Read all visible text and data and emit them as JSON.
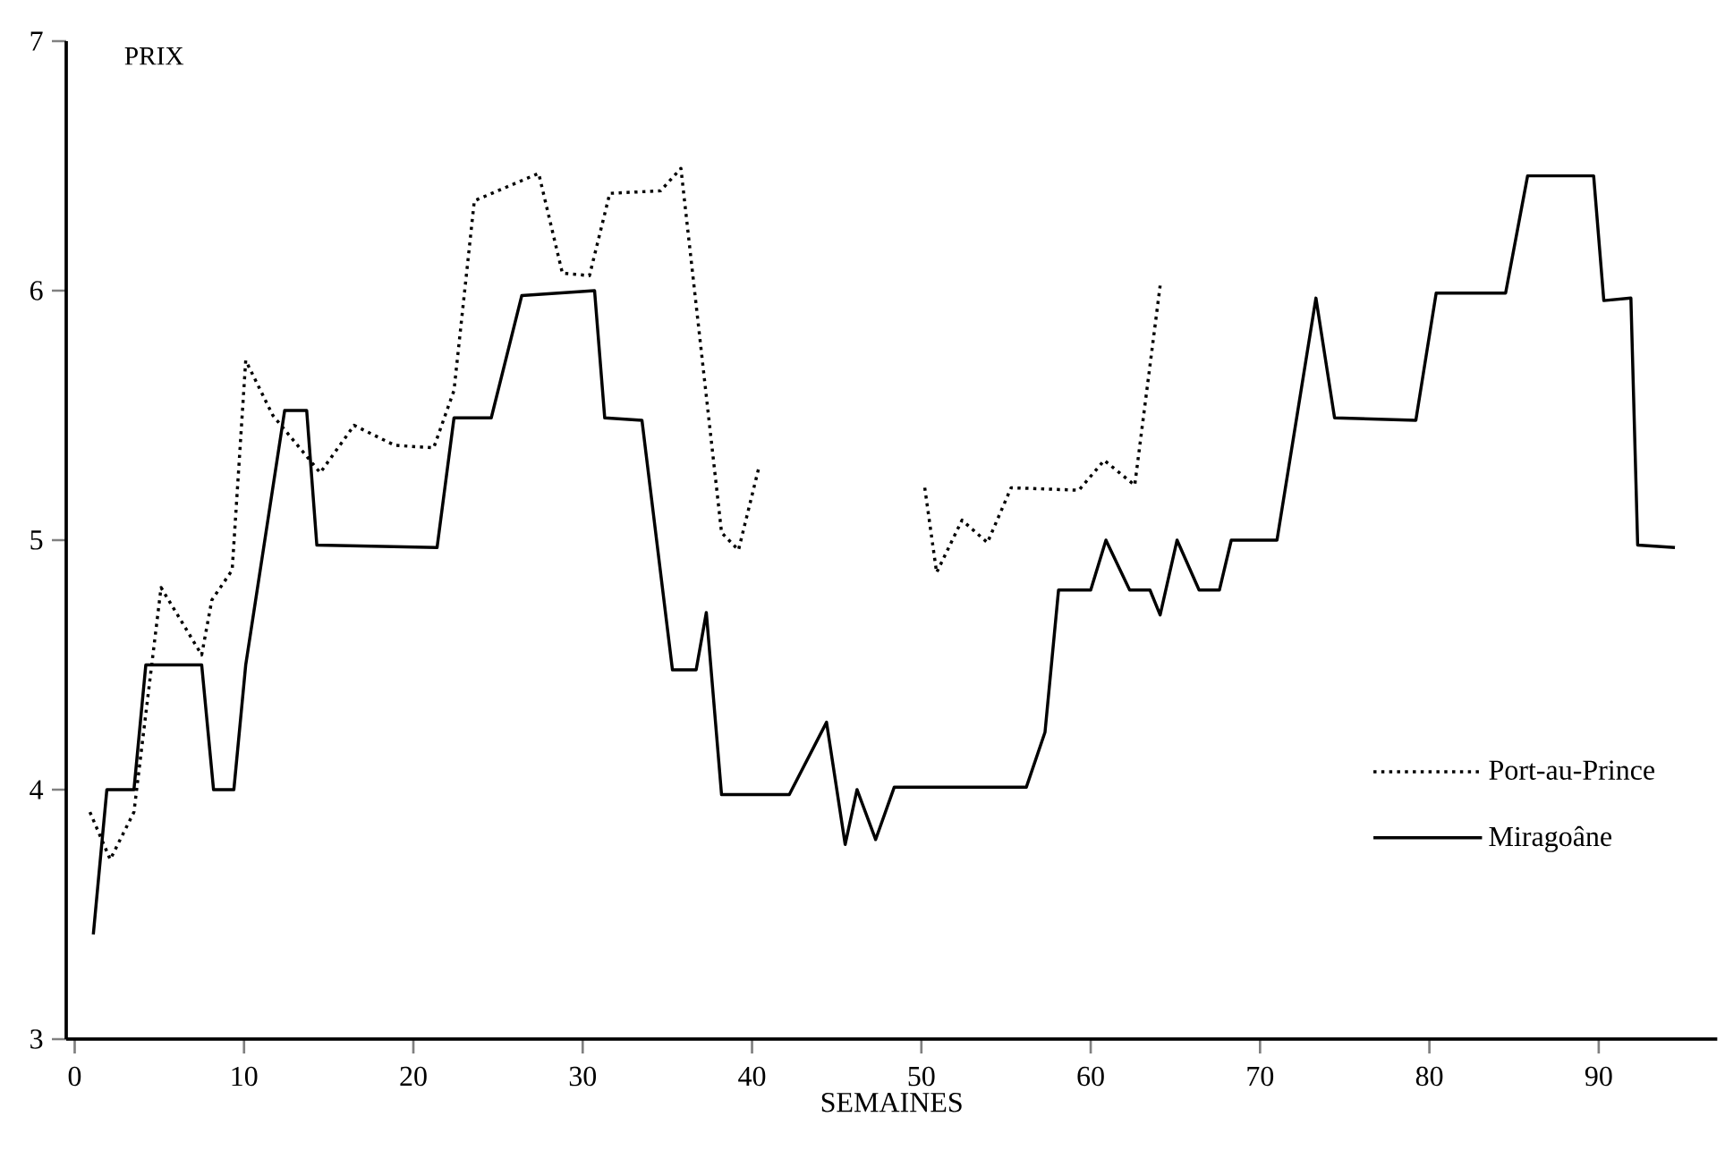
{
  "chart_data": {
    "type": "line",
    "xlabel": "SEMAINES",
    "ylabel": "PRIX",
    "xlim": [
      -0.5,
      97
    ],
    "ylim": [
      3,
      7
    ],
    "xticks": [
      0,
      10,
      20,
      30,
      40,
      50,
      60,
      70,
      80,
      90
    ],
    "yticks": [
      3,
      4,
      5,
      6,
      7
    ],
    "grid": false,
    "legend": "bottom right",
    "marker": "none",
    "series": [
      {
        "name": "Port-au-Prince",
        "color": "#000000",
        "line_style": "dotted",
        "x": [
          0.9,
          2.1,
          3.5,
          5.1,
          7.5,
          8.1,
          9.3,
          10.1,
          11.7,
          14.5,
          16.5,
          18.9,
          21.2,
          22.4,
          23.6,
          27.4,
          28.8,
          30.4,
          31.6,
          34.6,
          35.8,
          38.2,
          39.2,
          40.4,
          45,
          50.2,
          50.9,
          52.4,
          53.9,
          55.3,
          59.3,
          60.8,
          62.6,
          64.1
        ],
        "values": [
          3.91,
          3.72,
          3.91,
          4.81,
          4.54,
          4.76,
          4.88,
          5.72,
          5.5,
          5.27,
          5.46,
          5.38,
          5.37,
          5.6,
          6.36,
          6.47,
          6.07,
          6.06,
          6.39,
          6.4,
          6.49,
          5.03,
          4.96,
          5.29,
          null,
          5.21,
          4.87,
          5.08,
          4.99,
          5.21,
          5.2,
          5.32,
          5.22,
          6.02
        ]
      },
      {
        "name": "Miragoâne",
        "color": "#000000",
        "line_style": "solid",
        "x": [
          1.1,
          1.9,
          3.5,
          4.2,
          7.5,
          8.2,
          9.4,
          10.1,
          12.4,
          13.7,
          14.3,
          21.4,
          22.4,
          24.6,
          26.4,
          30.7,
          31.3,
          33.5,
          35.3,
          36.7,
          37.3,
          38.2,
          42.2,
          44.4,
          45.5,
          46.2,
          47.3,
          48.4,
          56.2,
          57.3,
          58.1,
          60.0,
          60.9,
          62.3,
          63.5,
          64.1,
          65.1,
          66.4,
          67.6,
          68.3,
          71.0,
          73.3,
          74.4,
          79.2,
          80.4,
          84.5,
          85.8,
          89.7,
          90.3,
          91.9,
          92.3,
          94.5
        ],
        "values": [
          3.42,
          4.0,
          4.0,
          4.5,
          4.5,
          4.0,
          4.0,
          4.5,
          5.52,
          5.52,
          4.98,
          4.97,
          5.49,
          5.49,
          5.98,
          6.0,
          5.49,
          5.48,
          4.48,
          4.48,
          4.71,
          3.98,
          3.98,
          4.27,
          3.78,
          4.0,
          3.8,
          4.01,
          4.01,
          4.23,
          4.8,
          4.8,
          5.0,
          4.8,
          4.8,
          4.7,
          5.0,
          4.8,
          4.8,
          5.0,
          5.0,
          5.97,
          5.49,
          5.48,
          5.99,
          5.99,
          6.46,
          6.46,
          5.96,
          5.97,
          4.98,
          4.97
        ]
      }
    ]
  }
}
